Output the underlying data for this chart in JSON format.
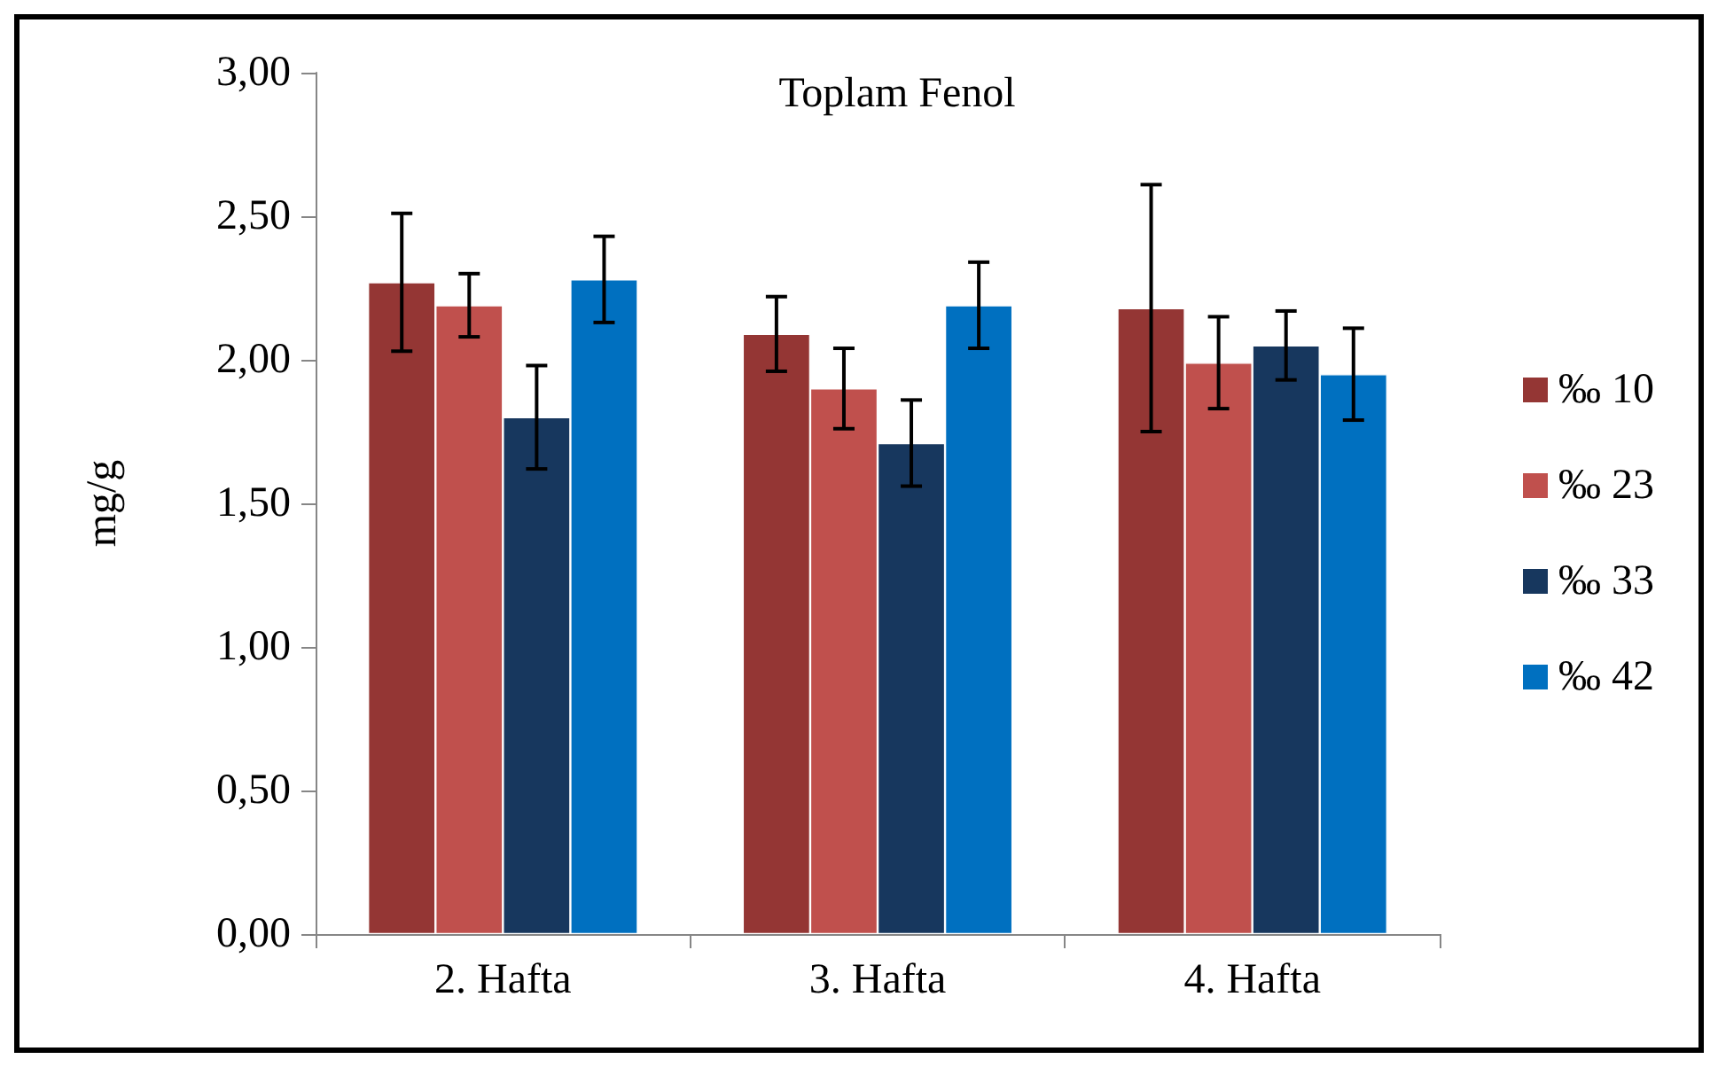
{
  "chart_data": {
    "type": "bar",
    "title": "Toplam Fenol",
    "ylabel": "mg/g",
    "categories": [
      "2. Hafta",
      "3. Hafta",
      "4. Hafta"
    ],
    "series": [
      {
        "name": "‰ 10",
        "color": "#943634",
        "values": [
          2.27,
          2.09,
          2.18
        ],
        "errors": [
          0.24,
          0.13,
          0.43
        ]
      },
      {
        "name": "‰ 23",
        "color": "#c0504d",
        "values": [
          2.19,
          1.9,
          1.99
        ],
        "errors": [
          0.11,
          0.14,
          0.16
        ]
      },
      {
        "name": "‰ 33",
        "color": "#17375e",
        "values": [
          1.8,
          1.71,
          2.05
        ],
        "errors": [
          0.18,
          0.15,
          0.12
        ]
      },
      {
        "name": "‰ 42",
        "color": "#0070c0",
        "values": [
          2.28,
          2.19,
          1.95
        ],
        "errors": [
          0.15,
          0.15,
          0.16
        ]
      }
    ],
    "ylim": [
      0,
      3
    ],
    "yticks": [
      {
        "value": 0,
        "label": "0,00"
      },
      {
        "value": 0.5,
        "label": "0,50"
      },
      {
        "value": 1,
        "label": "1,00"
      },
      {
        "value": 1.5,
        "label": "1,50"
      },
      {
        "value": 2,
        "label": "2,00"
      },
      {
        "value": 2.5,
        "label": "2,50"
      },
      {
        "value": 3,
        "label": "3,00"
      }
    ],
    "grid": false,
    "legend": "right"
  }
}
